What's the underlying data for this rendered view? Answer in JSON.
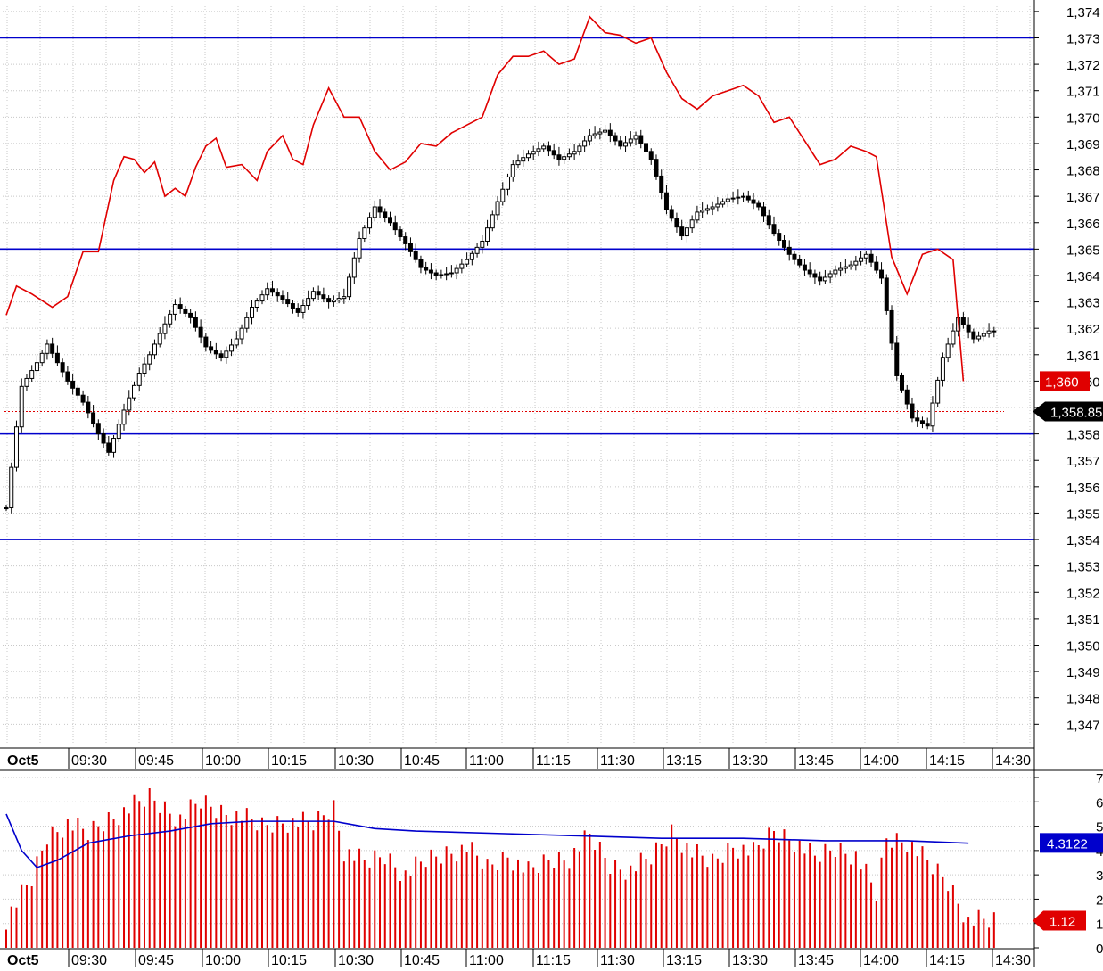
{
  "chart_data": [
    {
      "type": "candlestick",
      "panel": "price",
      "y_ticks": [
        "1,374",
        "1,373",
        "1,372",
        "1,371",
        "1,370",
        "1,369",
        "1,368",
        "1,367",
        "1,366",
        "1,365",
        "1,364",
        "1,363",
        "1,362",
        "1,361",
        "1,360",
        "1,359",
        "1,358",
        "1,357",
        "1,356",
        "1,355",
        "1,354",
        "1,353",
        "1,352",
        "1,351",
        "1,350",
        "1,349",
        "1,348",
        "1,347"
      ],
      "ylim": [
        1346.2,
        1374.3
      ],
      "x_labels": [
        "Oct5",
        "09:30",
        "09:45",
        "10:00",
        "10:15",
        "10:30",
        "10:45",
        "11:00",
        "11:15",
        "11:30",
        "13:15",
        "13:30",
        "13:45",
        "14:00",
        "14:15",
        "14:30"
      ],
      "horizontal_lines": [
        1373.0,
        1365.0,
        1358.0,
        1354.0
      ],
      "last_price_line": 1358.85,
      "current_price_label": "1,358.85",
      "red_line_label": "1,360",
      "colors": {
        "candle": "#000000",
        "red_series": "#e00000",
        "level_line": "#0000cc",
        "grid": "#c8c8c8"
      },
      "grid": true,
      "candle_close_path": [
        [
          0,
          1355.2
        ],
        [
          3,
          1359.8
        ],
        [
          6,
          1360.7
        ],
        [
          8,
          1361.4
        ],
        [
          12,
          1360.0
        ],
        [
          15,
          1359.2
        ],
        [
          18,
          1358.0
        ],
        [
          20,
          1357.3
        ],
        [
          23,
          1358.9
        ],
        [
          26,
          1360.3
        ],
        [
          28,
          1361.0
        ],
        [
          30,
          1361.8
        ],
        [
          33,
          1362.9
        ],
        [
          36,
          1362.4
        ],
        [
          39,
          1361.3
        ],
        [
          42,
          1360.9
        ],
        [
          45,
          1361.6
        ],
        [
          48,
          1362.8
        ],
        [
          51,
          1363.5
        ],
        [
          54,
          1363.1
        ],
        [
          57,
          1362.6
        ],
        [
          60,
          1363.4
        ],
        [
          63,
          1363.0
        ],
        [
          66,
          1363.2
        ],
        [
          69,
          1365.4
        ],
        [
          72,
          1366.6
        ],
        [
          75,
          1366.0
        ],
        [
          78,
          1365.2
        ],
        [
          81,
          1364.3
        ],
        [
          84,
          1364.0
        ],
        [
          87,
          1364.1
        ],
        [
          90,
          1364.6
        ],
        [
          93,
          1365.3
        ],
        [
          96,
          1366.8
        ],
        [
          99,
          1368.2
        ],
        [
          102,
          1368.6
        ],
        [
          105,
          1368.9
        ],
        [
          108,
          1368.4
        ],
        [
          111,
          1368.7
        ],
        [
          114,
          1369.3
        ],
        [
          117,
          1369.5
        ],
        [
          120,
          1368.9
        ],
        [
          123,
          1369.3
        ],
        [
          126,
          1368.4
        ],
        [
          129,
          1366.5
        ],
        [
          132,
          1365.5
        ],
        [
          135,
          1366.4
        ],
        [
          138,
          1366.6
        ],
        [
          141,
          1366.9
        ],
        [
          144,
          1367.0
        ],
        [
          147,
          1366.6
        ],
        [
          150,
          1365.6
        ],
        [
          153,
          1364.8
        ],
        [
          156,
          1364.2
        ],
        [
          159,
          1363.8
        ],
        [
          162,
          1364.2
        ],
        [
          165,
          1364.4
        ],
        [
          168,
          1364.8
        ],
        [
          171,
          1363.9
        ],
        [
          174,
          1360.2
        ],
        [
          177,
          1358.6
        ],
        [
          180,
          1358.3
        ],
        [
          183,
          1360.9
        ],
        [
          186,
          1362.4
        ],
        [
          189,
          1361.6
        ],
        [
          192,
          1361.9
        ]
      ],
      "red_line": [
        [
          0,
          1362.5
        ],
        [
          2,
          1363.6
        ],
        [
          5,
          1363.3
        ],
        [
          9,
          1362.8
        ],
        [
          12,
          1363.2
        ],
        [
          15,
          1364.9
        ],
        [
          18,
          1364.9
        ],
        [
          21,
          1367.6
        ],
        [
          23,
          1368.5
        ],
        [
          25,
          1368.4
        ],
        [
          27,
          1367.9
        ],
        [
          29,
          1368.3
        ],
        [
          31,
          1367.0
        ],
        [
          33,
          1367.3
        ],
        [
          35,
          1367.0
        ],
        [
          37,
          1368.1
        ],
        [
          39,
          1368.9
        ],
        [
          41,
          1369.2
        ],
        [
          43,
          1368.1
        ],
        [
          46,
          1368.2
        ],
        [
          49,
          1367.6
        ],
        [
          51,
          1368.7
        ],
        [
          54,
          1369.3
        ],
        [
          56,
          1368.4
        ],
        [
          58,
          1368.2
        ],
        [
          60,
          1369.7
        ],
        [
          63,
          1371.1
        ],
        [
          66,
          1370.0
        ],
        [
          69,
          1370.0
        ],
        [
          72,
          1368.7
        ],
        [
          75,
          1368.0
        ],
        [
          78,
          1368.3
        ],
        [
          81,
          1369.0
        ],
        [
          84,
          1368.9
        ],
        [
          87,
          1369.4
        ],
        [
          90,
          1369.7
        ],
        [
          93,
          1370.0
        ],
        [
          96,
          1371.6
        ],
        [
          99,
          1372.3
        ],
        [
          102,
          1372.3
        ],
        [
          105,
          1372.5
        ],
        [
          108,
          1372.0
        ],
        [
          111,
          1372.2
        ],
        [
          114,
          1373.8
        ],
        [
          117,
          1373.2
        ],
        [
          120,
          1373.1
        ],
        [
          123,
          1372.8
        ],
        [
          126,
          1373.0
        ],
        [
          129,
          1371.7
        ],
        [
          132,
          1370.7
        ],
        [
          135,
          1370.3
        ],
        [
          138,
          1370.8
        ],
        [
          141,
          1371.0
        ],
        [
          144,
          1371.2
        ],
        [
          147,
          1370.8
        ],
        [
          150,
          1369.8
        ],
        [
          153,
          1370.0
        ],
        [
          156,
          1369.1
        ],
        [
          159,
          1368.2
        ],
        [
          162,
          1368.4
        ],
        [
          165,
          1368.9
        ],
        [
          168,
          1368.7
        ],
        [
          170,
          1368.5
        ],
        [
          173,
          1364.7
        ],
        [
          176,
          1363.3
        ],
        [
          179,
          1364.8
        ],
        [
          182,
          1365.0
        ],
        [
          185,
          1364.6
        ],
        [
          187,
          1360.0
        ]
      ]
    },
    {
      "type": "bar",
      "panel": "volume",
      "y_ticks": [
        "7",
        "6",
        "5",
        "4",
        "3",
        "2",
        "1",
        "0"
      ],
      "ylim": [
        0,
        7
      ],
      "x_labels": [
        "Oct5",
        "09:30",
        "09:45",
        "10:00",
        "10:15",
        "10:30",
        "10:45",
        "11:00",
        "11:15",
        "11:30",
        "13:15",
        "13:30",
        "13:45",
        "14:00",
        "14:15",
        "14:30"
      ],
      "average_label": "4.3122",
      "current_value_label": "1.12",
      "colors": {
        "bar": "#e00000",
        "average": "#0000cc"
      },
      "values_sampled": [
        [
          0,
          1.2
        ],
        [
          5,
          2.8
        ],
        [
          8,
          4.6
        ],
        [
          12,
          5.1
        ],
        [
          16,
          4.7
        ],
        [
          20,
          5.3
        ],
        [
          24,
          5.7
        ],
        [
          28,
          6.2
        ],
        [
          30,
          5.9
        ],
        [
          34,
          5.3
        ],
        [
          38,
          6.0
        ],
        [
          42,
          5.6
        ],
        [
          46,
          5.4
        ],
        [
          50,
          5.0
        ],
        [
          54,
          5.2
        ],
        [
          60,
          5.1
        ],
        [
          64,
          5.8
        ],
        [
          66,
          4.0
        ],
        [
          70,
          3.5
        ],
        [
          74,
          3.8
        ],
        [
          78,
          3.0
        ],
        [
          82,
          3.6
        ],
        [
          86,
          3.9
        ],
        [
          90,
          4.1
        ],
        [
          94,
          3.3
        ],
        [
          98,
          3.8
        ],
        [
          102,
          3.1
        ],
        [
          106,
          3.6
        ],
        [
          110,
          3.7
        ],
        [
          114,
          4.6
        ],
        [
          118,
          3.4
        ],
        [
          122,
          3.2
        ],
        [
          126,
          3.7
        ],
        [
          130,
          4.8
        ],
        [
          134,
          3.9
        ],
        [
          138,
          3.5
        ],
        [
          142,
          4.2
        ],
        [
          146,
          3.9
        ],
        [
          150,
          4.8
        ],
        [
          154,
          4.4
        ],
        [
          158,
          3.7
        ],
        [
          162,
          4.1
        ],
        [
          166,
          3.8
        ],
        [
          170,
          2.2
        ],
        [
          172,
          4.5
        ],
        [
          176,
          4.4
        ],
        [
          180,
          3.5
        ],
        [
          184,
          2.7
        ],
        [
          188,
          1.1
        ]
      ],
      "average_line": [
        [
          0,
          5.5
        ],
        [
          3,
          4.0
        ],
        [
          6,
          3.3
        ],
        [
          10,
          3.6
        ],
        [
          16,
          4.3
        ],
        [
          24,
          4.6
        ],
        [
          32,
          4.8
        ],
        [
          40,
          5.1
        ],
        [
          48,
          5.2
        ],
        [
          56,
          5.2
        ],
        [
          64,
          5.2
        ],
        [
          72,
          4.9
        ],
        [
          80,
          4.8
        ],
        [
          96,
          4.7
        ],
        [
          112,
          4.6
        ],
        [
          128,
          4.5
        ],
        [
          144,
          4.5
        ],
        [
          160,
          4.4
        ],
        [
          176,
          4.4
        ],
        [
          188,
          4.3
        ]
      ]
    }
  ]
}
